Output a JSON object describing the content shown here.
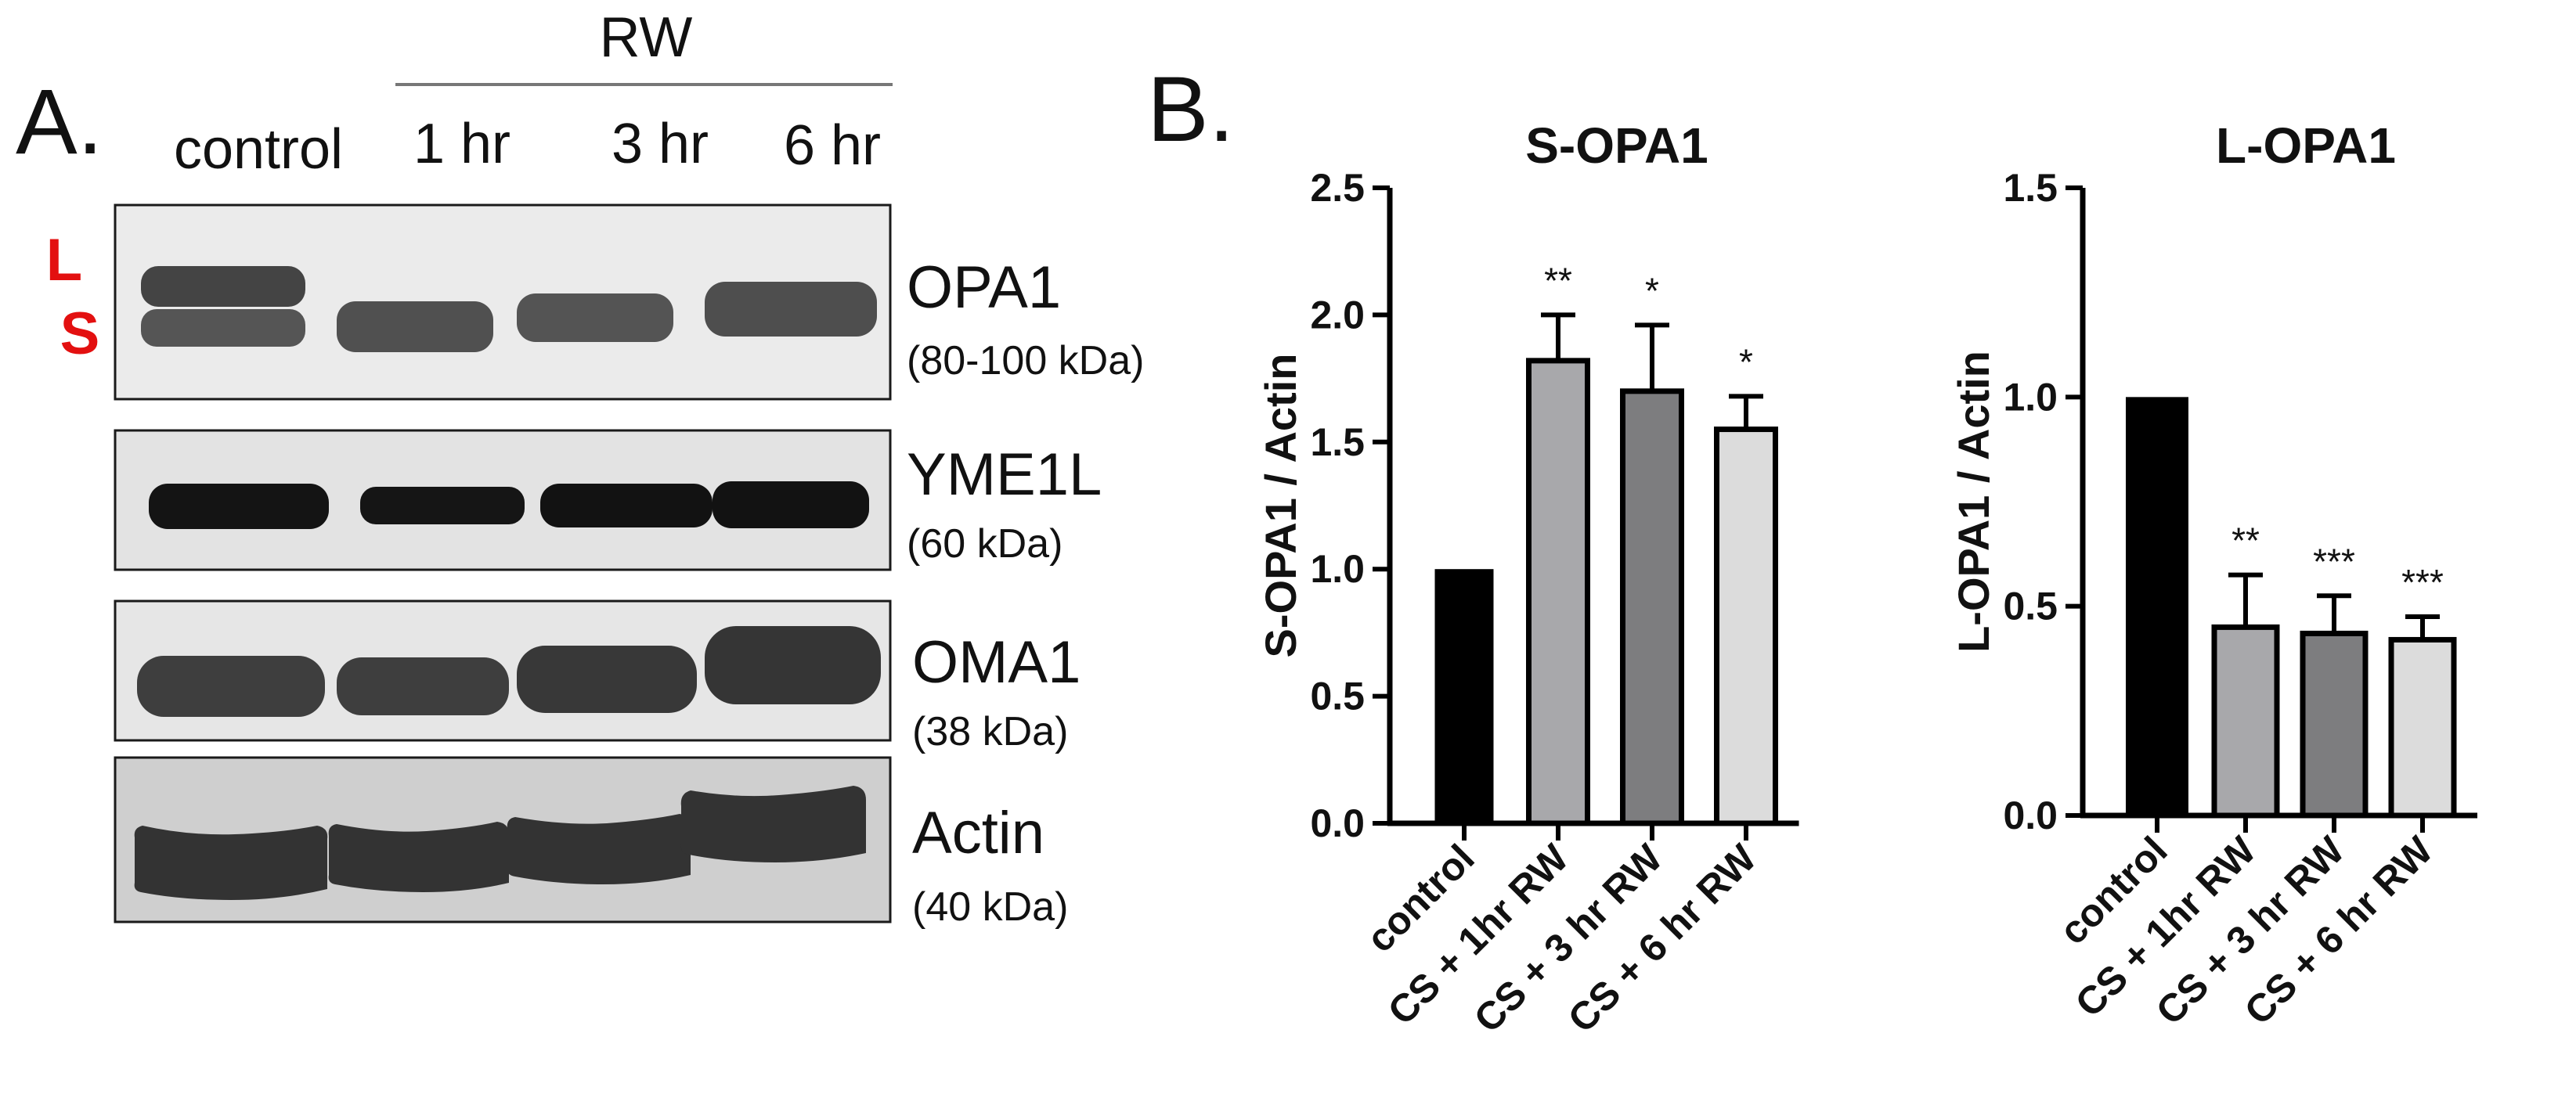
{
  "panel_a": {
    "letter": "A.",
    "group_label": "RW",
    "lanes": [
      "control",
      "1 hr",
      "3 hr",
      "6 hr"
    ],
    "band_markers": [
      "L",
      "S"
    ],
    "blots": [
      {
        "protein": "OPA1",
        "size": "(80-100 kDa)"
      },
      {
        "protein": "YME1L",
        "size": "(60 kDa)"
      },
      {
        "protein": "OMA1",
        "size": "(38 kDa)"
      },
      {
        "protein": "Actin",
        "size": "(40 kDa)"
      }
    ]
  },
  "panel_b": {
    "letter": "B."
  },
  "chart_data": [
    {
      "type": "bar",
      "title": "S-OPA1",
      "ylabel": "S-OPA1 / Actin",
      "xlabel": "",
      "categories": [
        "control",
        "CS + 1hr RW",
        "CS + 3 hr RW",
        "CS + 6 hr RW"
      ],
      "values": [
        1.0,
        1.82,
        1.7,
        1.55
      ],
      "errors": [
        0.0,
        0.18,
        0.26,
        0.13
      ],
      "significance": [
        "",
        "**",
        "*",
        "*"
      ],
      "bar_colors": [
        "#000000",
        "#a8a8ab",
        "#7d7d7f",
        "#dcdcdc"
      ],
      "ylim": [
        0,
        2.5
      ],
      "yticks": [
        "0.0",
        "0.5",
        "1.0",
        "1.5",
        "2.0",
        "2.5"
      ],
      "grid": false
    },
    {
      "type": "bar",
      "title": "L-OPA1",
      "ylabel": "L-OPA1 / Actin",
      "xlabel": "",
      "categories": [
        "control",
        "CS + 1hr RW",
        "CS + 3 hr RW",
        "CS + 6 hr RW"
      ],
      "values": [
        1.0,
        0.45,
        0.435,
        0.42
      ],
      "errors": [
        0.0,
        0.125,
        0.09,
        0.055
      ],
      "significance": [
        "",
        "**",
        "***",
        "***"
      ],
      "bar_colors": [
        "#000000",
        "#a8a8ab",
        "#7d7d7f",
        "#dcdcdc"
      ],
      "ylim": [
        0,
        1.5
      ],
      "yticks": [
        "0.0",
        "0.5",
        "1.0",
        "1.5"
      ],
      "grid": false
    }
  ]
}
